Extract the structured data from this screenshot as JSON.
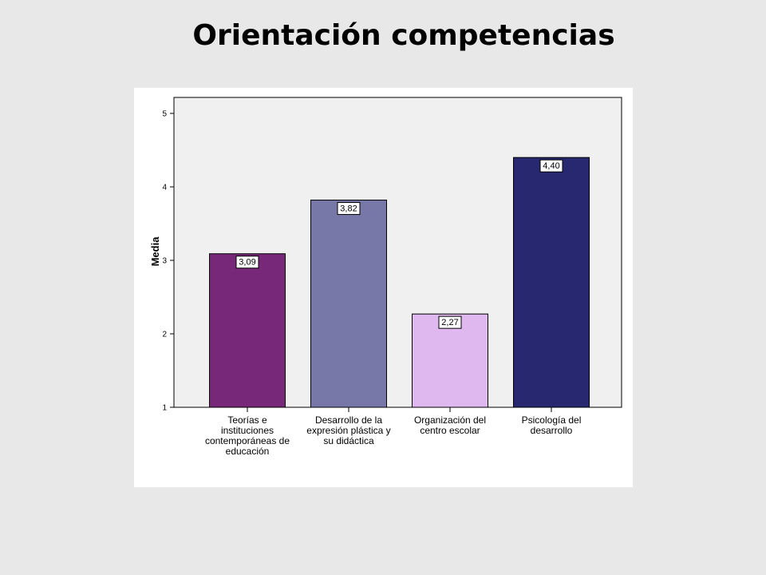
{
  "chart_data": {
    "type": "bar",
    "title": "Orientación competencias",
    "ylabel": "Media",
    "xlabel": "",
    "ylim": [
      1,
      5
    ],
    "yticks": [
      "1",
      "2",
      "3",
      "4",
      "5"
    ],
    "categories": [
      [
        "Teorías e",
        "instituciones",
        "contemporáneas de",
        "educación"
      ],
      [
        "Desarrollo de la",
        "expresión plástica y",
        "su didáctica"
      ],
      [
        "Organización del",
        "centro escolar"
      ],
      [
        "Psicología del",
        "desarrollo"
      ]
    ],
    "values": [
      3.09,
      3.82,
      2.27,
      4.4
    ],
    "data_labels": [
      "3,09",
      "3,82",
      "2,27",
      "4,40"
    ],
    "colors": [
      "#782878",
      "#7878a8",
      "#e0b8f0",
      "#282870"
    ],
    "plot_background": "#f0f0f0",
    "grid": false,
    "legend": "none"
  }
}
